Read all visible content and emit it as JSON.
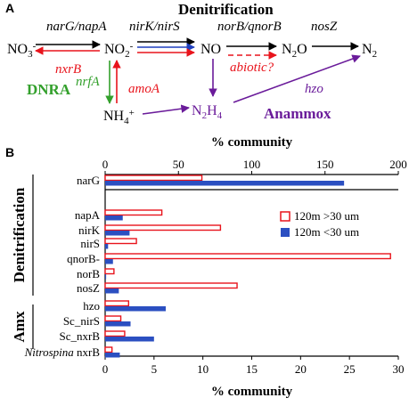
{
  "panel_a": {
    "label": "A",
    "title": "Denitrification",
    "species": {
      "no3": "NO3-",
      "no2": "NO2-",
      "no": "NO",
      "n2o": "N2O",
      "n2": "N2",
      "nh4": "NH4+",
      "n2h4": "N2H4"
    },
    "genes": {
      "narg_napa": "narG/napA",
      "nirk_nirs": "nirK/nirS",
      "norb_qnorb": "norB/qnorB",
      "nosz": "nosZ",
      "nxrb": "nxrB",
      "nrfa": "nrfA",
      "amoa": "amoA",
      "abiotic": "abiotic?",
      "hzo": "hzo"
    },
    "process_labels": {
      "dnra": "DNRA",
      "anammox": "Anammox"
    },
    "colors": {
      "black": "#000000",
      "red": "#e8141c",
      "green": "#33a02c",
      "blue": "#1f3fbf",
      "purple": "#6a1b9a"
    }
  },
  "panel_b": {
    "label": "B",
    "group_labels": [
      "Denitrification",
      "Amx"
    ],
    "legend": [
      {
        "name": "120m >30 um",
        "style": "hollow-red"
      },
      {
        "name": "120m <30 um",
        "style": "solid-blue"
      }
    ]
  },
  "chart_data": {
    "type": "bar",
    "orientation": "horizontal",
    "categories": [
      "narG",
      "napA",
      "nirK",
      "nirS",
      "qnorB-",
      "norB",
      "nosZ",
      "hzo",
      "Sc_nirS",
      "Sc_nxrB",
      "Nitrospina nxrB"
    ],
    "category_prefix": {
      "Nitrospina nxrB": "Nitrospina"
    },
    "series": [
      {
        "name": "120m >30 um",
        "color": "#e8141c",
        "fill": "none",
        "values": [
          66,
          5.8,
          11.8,
          3.2,
          29.2,
          0.9,
          13.5,
          2.4,
          1.6,
          2.0,
          0.7
        ]
      },
      {
        "name": "120m <30 um",
        "color": "#2b4fc1",
        "fill": "solid",
        "values": [
          163,
          1.8,
          2.5,
          0.3,
          0.8,
          0.1,
          1.4,
          6.2,
          2.6,
          5.0,
          1.5
        ]
      }
    ],
    "axes": {
      "top": {
        "label": "% community",
        "ticks": [
          0,
          50,
          100,
          150,
          200
        ],
        "lim": [
          0,
          200
        ],
        "applies_to": [
          "narG"
        ]
      },
      "bottom": {
        "label": "% community",
        "ticks": [
          0,
          5,
          10,
          15,
          20,
          25,
          30
        ],
        "lim": [
          0,
          30
        ]
      }
    },
    "legend_position": "upper-right",
    "grid": false
  }
}
